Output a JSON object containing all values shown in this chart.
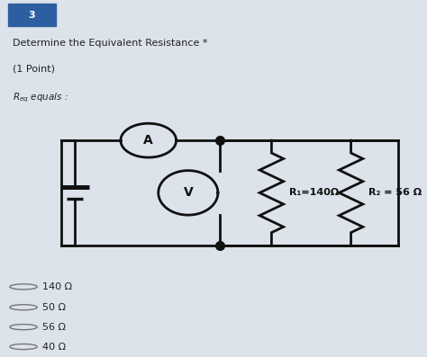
{
  "title": "Determine the Equivalent Resistance *",
  "subtitle": "(1 Point)",
  "req_label": "$R_{eq}$ equals :",
  "question_num": "3",
  "question_bg": "#2d5fa0",
  "bg_color": "#dce3ea",
  "circuit_bg": "#f5f5f8",
  "text_color": "#222222",
  "line_color": "#111111",
  "r1_label": "R₁=140Ω",
  "r2_label": "R₂ = 56 Ω",
  "ammeter_label": "A",
  "voltmeter_label": "V",
  "options": [
    "140 Ω",
    "50 Ω",
    "56 Ω",
    "40 Ω"
  ],
  "lw": 2.0
}
